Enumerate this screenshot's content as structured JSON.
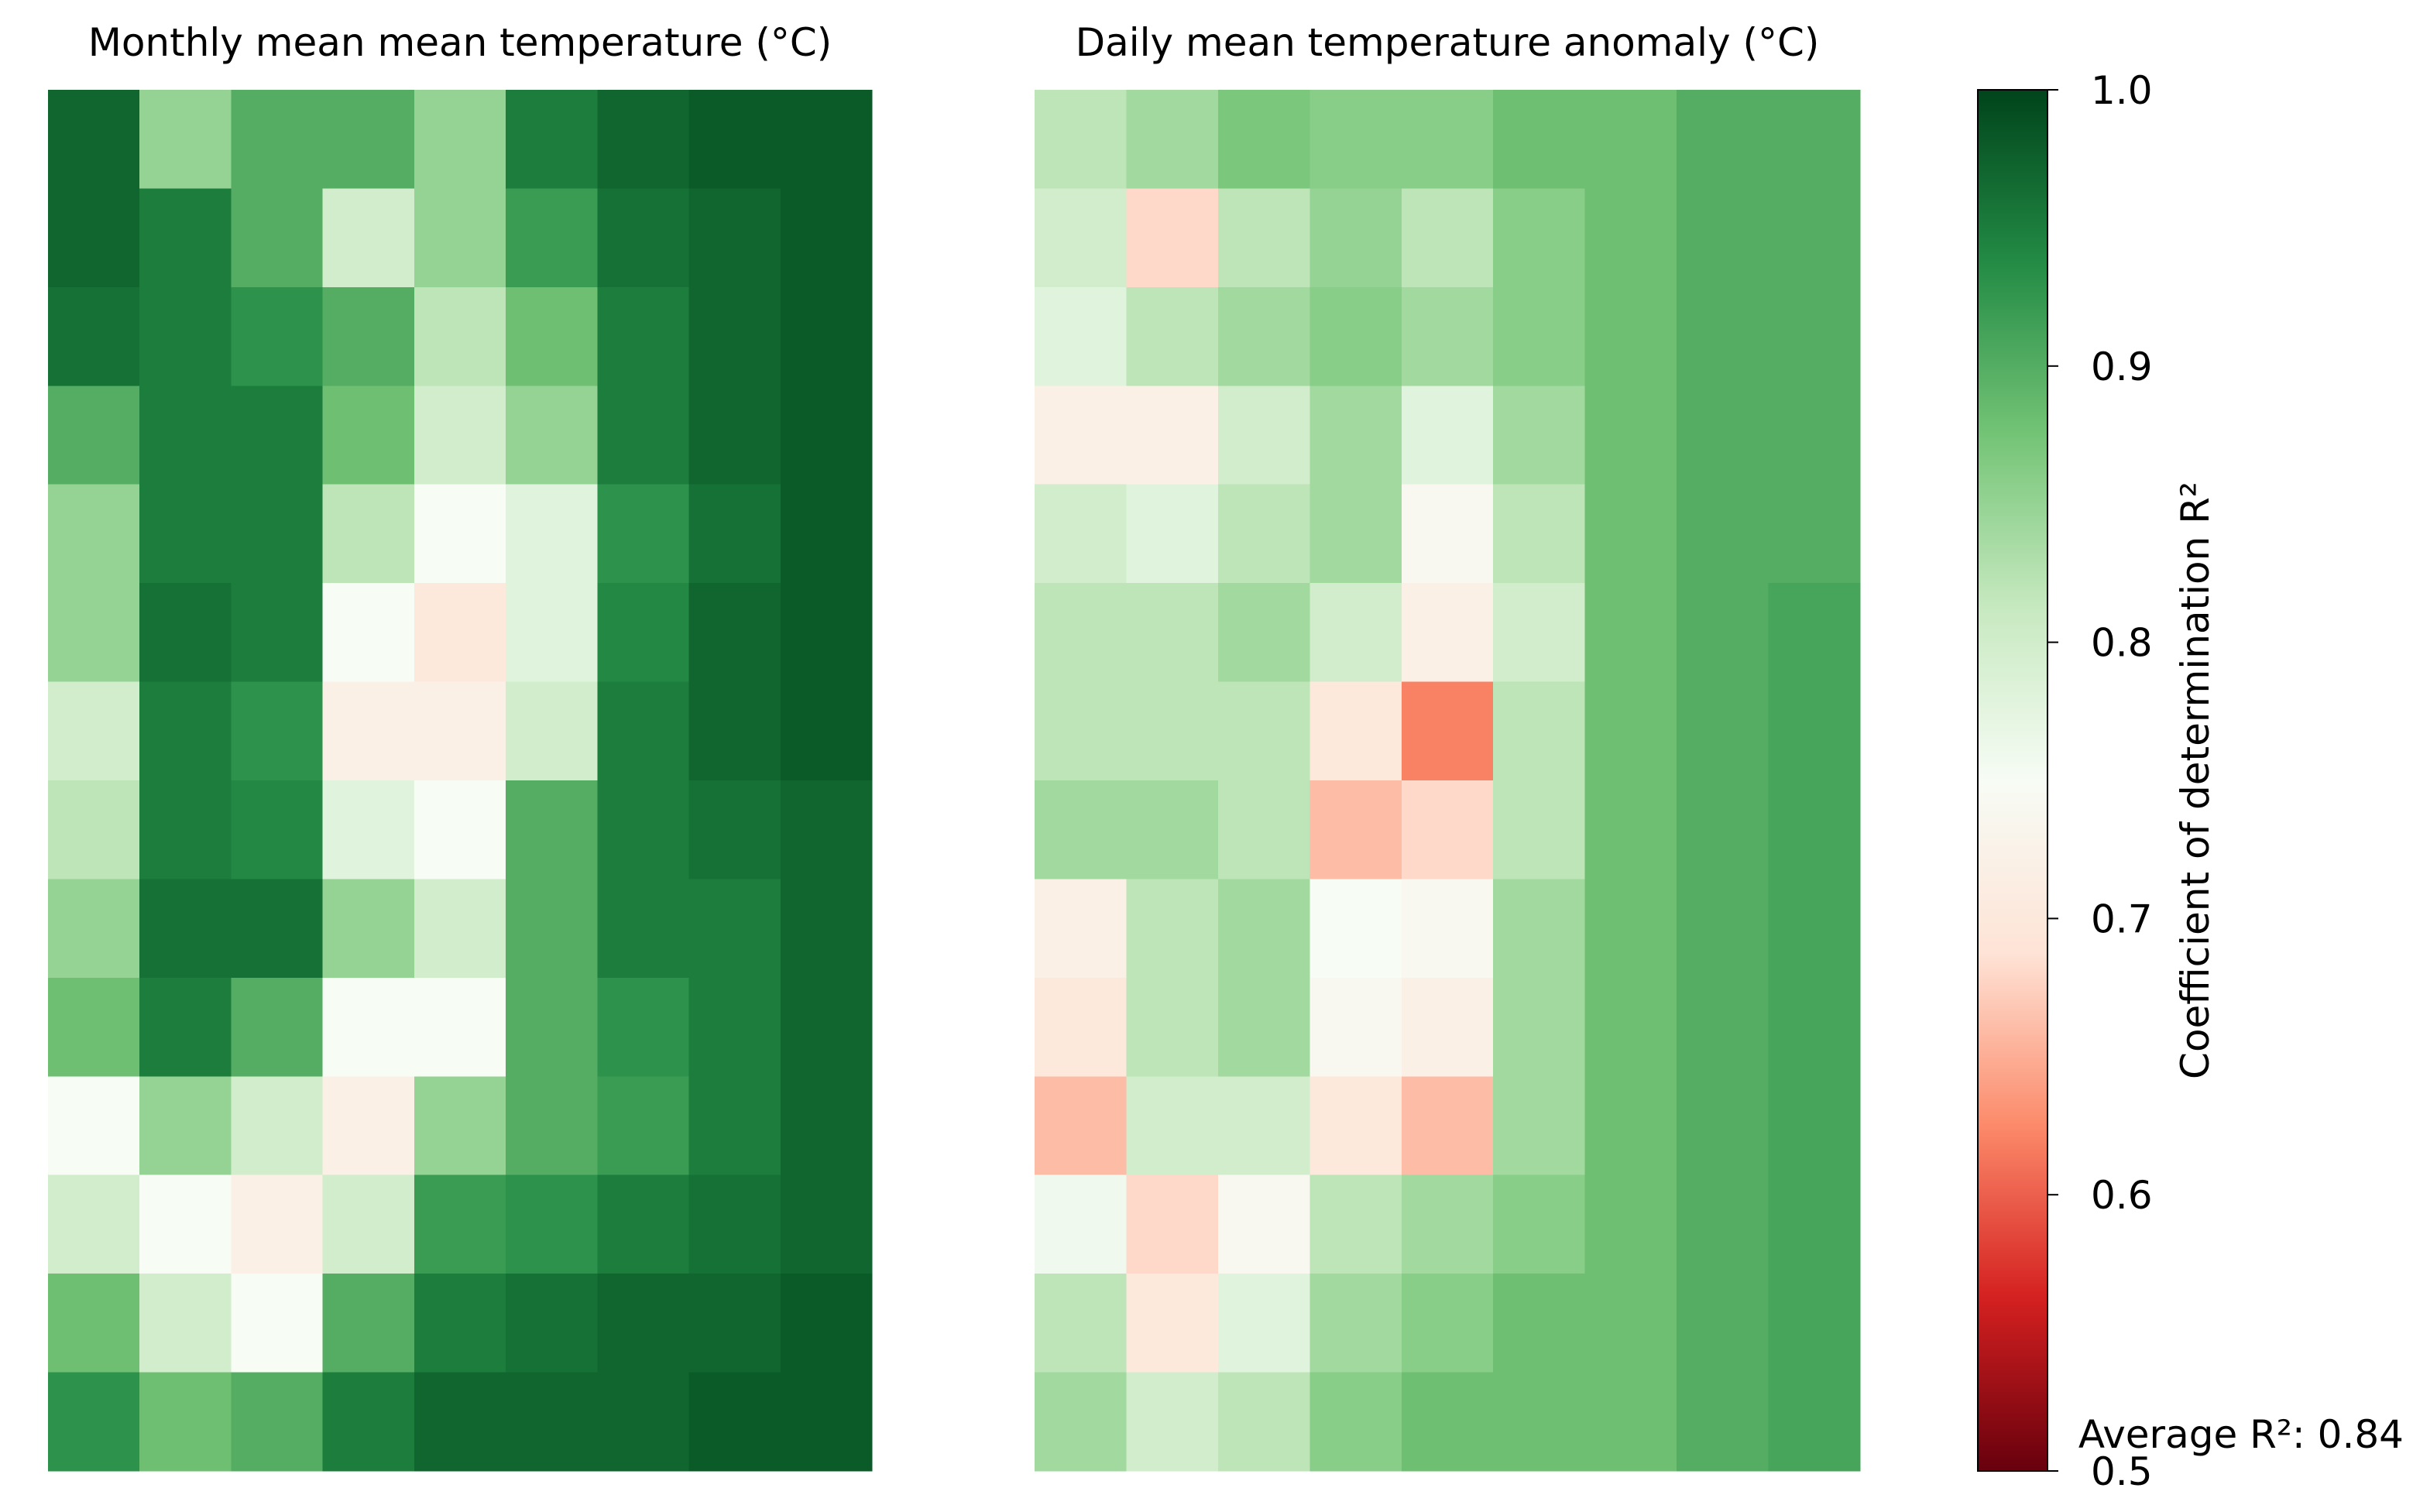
{
  "chart_data": {
    "type": "heatmap",
    "panels": [
      {
        "title": "Monthly mean mean temperature (°C)",
        "values": [
          [
            0.97,
            0.85,
            0.9,
            0.9,
            0.85,
            0.95,
            0.97,
            0.98,
            0.98
          ],
          [
            0.97,
            0.95,
            0.9,
            0.8,
            0.85,
            0.92,
            0.96,
            0.97,
            0.98
          ],
          [
            0.96,
            0.95,
            0.93,
            0.9,
            0.82,
            0.88,
            0.95,
            0.97,
            0.98
          ],
          [
            0.9,
            0.95,
            0.95,
            0.88,
            0.8,
            0.85,
            0.95,
            0.97,
            0.98
          ],
          [
            0.85,
            0.95,
            0.95,
            0.82,
            0.75,
            0.78,
            0.93,
            0.96,
            0.98
          ],
          [
            0.85,
            0.96,
            0.95,
            0.75,
            0.7,
            0.78,
            0.94,
            0.97,
            0.98
          ],
          [
            0.8,
            0.95,
            0.93,
            0.72,
            0.72,
            0.8,
            0.95,
            0.97,
            0.98
          ],
          [
            0.82,
            0.95,
            0.94,
            0.78,
            0.75,
            0.9,
            0.95,
            0.96,
            0.97
          ],
          [
            0.85,
            0.96,
            0.96,
            0.85,
            0.8,
            0.9,
            0.95,
            0.95,
            0.97
          ],
          [
            0.88,
            0.95,
            0.9,
            0.75,
            0.75,
            0.9,
            0.93,
            0.95,
            0.97
          ],
          [
            0.75,
            0.85,
            0.8,
            0.72,
            0.85,
            0.9,
            0.92,
            0.95,
            0.97
          ],
          [
            0.8,
            0.75,
            0.72,
            0.8,
            0.92,
            0.93,
            0.95,
            0.96,
            0.97
          ],
          [
            0.88,
            0.8,
            0.75,
            0.9,
            0.95,
            0.96,
            0.97,
            0.97,
            0.98
          ],
          [
            0.93,
            0.88,
            0.9,
            0.95,
            0.97,
            0.97,
            0.97,
            0.98,
            0.98
          ]
        ]
      },
      {
        "title": "Daily mean temperature anomaly (°C)",
        "annotation": "Average R²: 0.84",
        "values": [
          [
            0.82,
            0.84,
            0.87,
            0.86,
            0.86,
            0.88,
            0.88,
            0.9,
            0.9
          ],
          [
            0.8,
            0.68,
            0.82,
            0.85,
            0.82,
            0.86,
            0.88,
            0.9,
            0.9
          ],
          [
            0.78,
            0.82,
            0.84,
            0.86,
            0.84,
            0.86,
            0.88,
            0.9,
            0.9
          ],
          [
            0.72,
            0.72,
            0.8,
            0.84,
            0.78,
            0.84,
            0.88,
            0.9,
            0.9
          ],
          [
            0.8,
            0.78,
            0.82,
            0.84,
            0.74,
            0.82,
            0.88,
            0.9,
            0.9
          ],
          [
            0.82,
            0.82,
            0.84,
            0.8,
            0.72,
            0.8,
            0.88,
            0.9,
            0.91
          ],
          [
            0.82,
            0.82,
            0.82,
            0.7,
            0.62,
            0.82,
            0.88,
            0.9,
            0.91
          ],
          [
            0.84,
            0.84,
            0.82,
            0.66,
            0.68,
            0.82,
            0.88,
            0.9,
            0.91
          ],
          [
            0.72,
            0.82,
            0.84,
            0.75,
            0.74,
            0.84,
            0.88,
            0.9,
            0.91
          ],
          [
            0.7,
            0.82,
            0.84,
            0.74,
            0.72,
            0.84,
            0.88,
            0.9,
            0.91
          ],
          [
            0.66,
            0.8,
            0.8,
            0.7,
            0.66,
            0.84,
            0.88,
            0.9,
            0.91
          ],
          [
            0.76,
            0.68,
            0.74,
            0.82,
            0.84,
            0.86,
            0.88,
            0.9,
            0.91
          ],
          [
            0.82,
            0.7,
            0.78,
            0.84,
            0.86,
            0.88,
            0.88,
            0.9,
            0.91
          ],
          [
            0.84,
            0.8,
            0.82,
            0.86,
            0.88,
            0.88,
            0.88,
            0.9,
            0.91
          ]
        ]
      }
    ],
    "colorbar_label": "Coefficient of determination R²",
    "zlim": [
      0.5,
      1.0
    ],
    "zticks": [
      {
        "value": 0.5,
        "label": "0.5"
      },
      0.6,
      0.7,
      0.8,
      0.9,
      {
        "value": 1.0,
        "label": "1.0"
      }
    ],
    "colors": [
      "#67000d",
      "#d42020",
      "#fc8a6a",
      "#fee3d6",
      "#f7fcf5",
      "#c7e9c0",
      "#74c476",
      "#238b45",
      "#00441b"
    ]
  }
}
